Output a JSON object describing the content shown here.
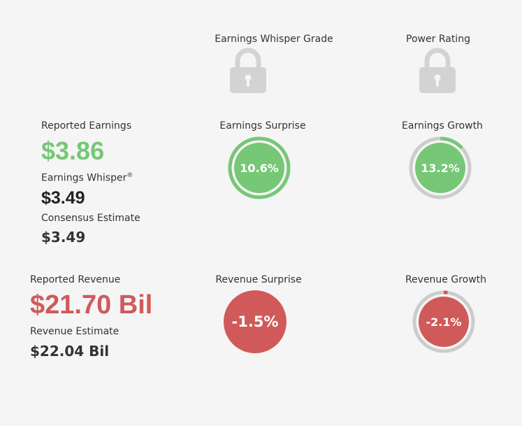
{
  "colors": {
    "positive": "#76c776",
    "negative": "#d05a5a",
    "ring_track": "#cccccc",
    "lock": "#d3d3d3",
    "gauge_text": "#ffffff"
  },
  "grades": {
    "whisper_grade_label": "Earnings Whisper Grade",
    "whisper_grade_icon": "lock-icon",
    "power_rating_label": "Power Rating",
    "power_rating_icon": "lock-icon"
  },
  "earnings": {
    "reported_label": "Reported Earnings",
    "reported_value": "$3.86",
    "whisper_label": "Earnings Whisper",
    "whisper_mark": "®",
    "whisper_value": "$3.49",
    "consensus_label": "Consensus Estimate",
    "consensus_value": "$3.49"
  },
  "revenue": {
    "reported_label": "Reported Revenue",
    "reported_value": "$21.70 Bil",
    "estimate_label": "Revenue Estimate",
    "estimate_value": "$22.04 Bil"
  },
  "gauges": {
    "earnings_surprise": {
      "label": "Earnings Surprise",
      "value_text": "10.6%",
      "fraction": 1.0,
      "sentiment": "positive"
    },
    "earnings_growth": {
      "label": "Earnings Growth",
      "value_text": "13.2%",
      "fraction": 0.132,
      "sentiment": "positive"
    },
    "revenue_surprise": {
      "label": "Revenue Surprise",
      "value_text": "-1.5%",
      "fraction": 0,
      "sentiment": "negative"
    },
    "revenue_growth": {
      "label": "Revenue Growth",
      "value_text": "-2.1%",
      "fraction": 0.021,
      "sentiment": "negative"
    }
  }
}
